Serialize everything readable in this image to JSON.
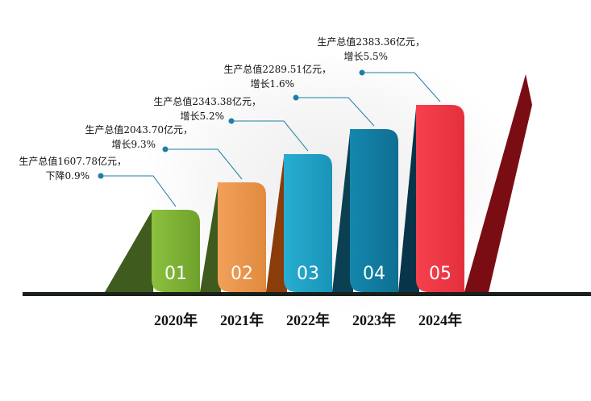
{
  "chart_data": {
    "type": "bar",
    "categories": [
      "2020年",
      "2021年",
      "2022年",
      "2023年",
      "2024年"
    ],
    "badges": [
      "01",
      "02",
      "03",
      "04",
      "05"
    ],
    "values": [
      1607.78,
      2043.7,
      2343.38,
      2289.51,
      2383.36
    ],
    "annotations": [
      {
        "line1": "生产总值1607.78亿元，",
        "line2": "下降0.9%"
      },
      {
        "line1": "生产总值2043.70亿元，",
        "line2": "增长9.3%"
      },
      {
        "line1": "生产总值2343.38亿元，",
        "line2": "增长5.2%"
      },
      {
        "line1": "生产总值2289.51亿元，",
        "line2": "增长1.6%"
      },
      {
        "line1": "生产总值2383.36亿元，",
        "line2": "增长5.5%"
      }
    ],
    "colors": {
      "front": [
        "#8cc13f",
        "#f2a05a",
        "#27aed0",
        "#1487ad",
        "#f6404d"
      ],
      "front_dark": [
        "#6fa12c",
        "#e08a3e",
        "#1a94b8",
        "#0f6f92",
        "#e42f3d"
      ],
      "side": [
        "#3f5b1d",
        "#8a3c0a",
        "#0b3f52",
        "#08354a",
        "#7a0d14"
      ],
      "baseline": "#1a201c",
      "leader": "#1f7ea6"
    }
  }
}
